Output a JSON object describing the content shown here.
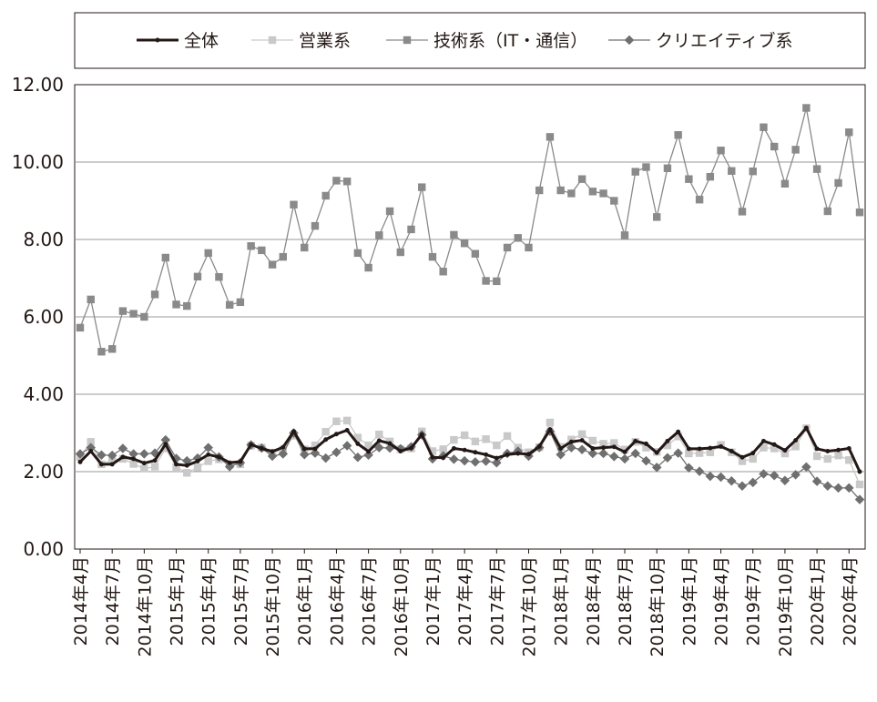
{
  "chart_data": {
    "type": "line",
    "title": "",
    "xlabel": "",
    "ylabel": "",
    "ylim": [
      0,
      12
    ],
    "yticks": [
      "0.00",
      "2.00",
      "4.00",
      "6.00",
      "8.00",
      "10.00",
      "12.00"
    ],
    "grid": true,
    "legend_position": "top",
    "x_tick_labels": [
      "2014年4月",
      "2014年7月",
      "2014年10月",
      "2015年1月",
      "2015年4月",
      "2015年7月",
      "2015年10月",
      "2016年1月",
      "2016年4月",
      "2016年7月",
      "2016年10月",
      "2017年1月",
      "2017年4月",
      "2017年7月",
      "2017年10月",
      "2018年1月",
      "2018年4月",
      "2018年7月",
      "2018年10月",
      "2019年1月",
      "2019年4月",
      "2019年7月",
      "2019年10月",
      "2020年1月",
      "2020年4月"
    ],
    "x": [
      "2014-04",
      "2014-05",
      "2014-06",
      "2014-07",
      "2014-08",
      "2014-09",
      "2014-10",
      "2014-11",
      "2014-12",
      "2015-01",
      "2015-02",
      "2015-03",
      "2015-04",
      "2015-05",
      "2015-06",
      "2015-07",
      "2015-08",
      "2015-09",
      "2015-10",
      "2015-11",
      "2015-12",
      "2016-01",
      "2016-02",
      "2016-03",
      "2016-04",
      "2016-05",
      "2016-06",
      "2016-07",
      "2016-08",
      "2016-09",
      "2016-10",
      "2016-11",
      "2016-12",
      "2017-01",
      "2017-02",
      "2017-03",
      "2017-04",
      "2017-05",
      "2017-06",
      "2017-07",
      "2017-08",
      "2017-09",
      "2017-10",
      "2017-11",
      "2017-12",
      "2018-01",
      "2018-02",
      "2018-03",
      "2018-04",
      "2018-05",
      "2018-06",
      "2018-07",
      "2018-08",
      "2018-09",
      "2018-10",
      "2018-11",
      "2018-12",
      "2019-01",
      "2019-02",
      "2019-03",
      "2019-04",
      "2019-05",
      "2019-06",
      "2019-07",
      "2019-08",
      "2019-09",
      "2019-10",
      "2019-11",
      "2019-12",
      "2020-01",
      "2020-02",
      "2020-03",
      "2020-04",
      "2020-05"
    ],
    "series": [
      {
        "name": "全体",
        "color": "#231815",
        "marker": "circle",
        "values": [
          2.25,
          2.53,
          2.19,
          2.19,
          2.38,
          2.33,
          2.22,
          2.29,
          2.71,
          2.19,
          2.16,
          2.27,
          2.44,
          2.38,
          2.23,
          2.26,
          2.7,
          2.6,
          2.52,
          2.63,
          3.04,
          2.59,
          2.59,
          2.83,
          2.97,
          3.07,
          2.72,
          2.52,
          2.8,
          2.73,
          2.53,
          2.61,
          2.96,
          2.37,
          2.36,
          2.6,
          2.56,
          2.5,
          2.44,
          2.35,
          2.44,
          2.47,
          2.45,
          2.65,
          3.09,
          2.6,
          2.77,
          2.81,
          2.6,
          2.62,
          2.64,
          2.51,
          2.79,
          2.72,
          2.49,
          2.79,
          3.03,
          2.59,
          2.59,
          2.61,
          2.65,
          2.53,
          2.37,
          2.48,
          2.79,
          2.7,
          2.55,
          2.81,
          3.13,
          2.59,
          2.53,
          2.56,
          2.6,
          2.0
        ]
      },
      {
        "name": "営業系",
        "color": "#c9c9c9",
        "marker": "square",
        "values": [
          2.38,
          2.77,
          2.19,
          2.3,
          2.33,
          2.2,
          2.08,
          2.13,
          2.6,
          2.12,
          1.97,
          2.11,
          2.27,
          2.32,
          2.18,
          2.19,
          2.67,
          2.62,
          2.49,
          2.57,
          2.93,
          2.58,
          2.68,
          3.03,
          3.3,
          3.32,
          2.88,
          2.68,
          2.96,
          2.78,
          2.58,
          2.6,
          3.04,
          2.53,
          2.58,
          2.82,
          2.94,
          2.78,
          2.84,
          2.68,
          2.92,
          2.62,
          2.5,
          2.63,
          3.27,
          2.64,
          2.83,
          2.97,
          2.8,
          2.72,
          2.74,
          2.57,
          2.77,
          2.62,
          2.51,
          2.68,
          2.91,
          2.47,
          2.48,
          2.5,
          2.69,
          2.5,
          2.27,
          2.33,
          2.62,
          2.6,
          2.47,
          2.65,
          3.12,
          2.4,
          2.33,
          2.42,
          2.3,
          1.67
        ]
      },
      {
        "name": "技術系（IT・通信）",
        "color": "#8a8a8a",
        "marker": "square",
        "values": [
          5.72,
          6.45,
          5.1,
          5.17,
          6.15,
          6.08,
          6.0,
          6.58,
          7.53,
          6.32,
          6.28,
          7.04,
          7.65,
          7.03,
          6.31,
          6.38,
          7.83,
          7.72,
          7.35,
          7.55,
          8.9,
          7.79,
          8.35,
          9.13,
          9.52,
          9.5,
          7.65,
          7.27,
          8.11,
          8.73,
          7.67,
          8.26,
          9.35,
          7.55,
          7.17,
          8.12,
          7.9,
          7.63,
          6.93,
          6.92,
          7.79,
          8.04,
          7.79,
          9.27,
          10.65,
          9.27,
          9.19,
          9.56,
          9.24,
          9.19,
          9.0,
          8.11,
          9.75,
          9.87,
          8.58,
          9.84,
          10.7,
          9.56,
          9.03,
          9.62,
          10.3,
          9.77,
          8.72,
          9.76,
          10.9,
          10.4,
          9.44,
          10.32,
          11.4,
          9.82,
          8.73,
          9.46,
          10.77,
          8.7
        ]
      },
      {
        "name": "クリエイティブ系",
        "color": "#6f6f6f",
        "marker": "diamond",
        "values": [
          2.46,
          2.62,
          2.43,
          2.42,
          2.6,
          2.46,
          2.46,
          2.48,
          2.82,
          2.34,
          2.28,
          2.35,
          2.62,
          2.38,
          2.13,
          2.23,
          2.69,
          2.61,
          2.4,
          2.46,
          3.0,
          2.44,
          2.48,
          2.35,
          2.5,
          2.67,
          2.37,
          2.43,
          2.62,
          2.61,
          2.59,
          2.64,
          2.95,
          2.33,
          2.41,
          2.32,
          2.28,
          2.25,
          2.27,
          2.23,
          2.47,
          2.53,
          2.4,
          2.62,
          3.04,
          2.44,
          2.62,
          2.57,
          2.47,
          2.47,
          2.39,
          2.33,
          2.47,
          2.28,
          2.11,
          2.36,
          2.48,
          2.1,
          2.01,
          1.88,
          1.86,
          1.76,
          1.63,
          1.72,
          1.94,
          1.9,
          1.77,
          1.92,
          2.12,
          1.75,
          1.63,
          1.58,
          1.58,
          1.28
        ]
      }
    ]
  }
}
